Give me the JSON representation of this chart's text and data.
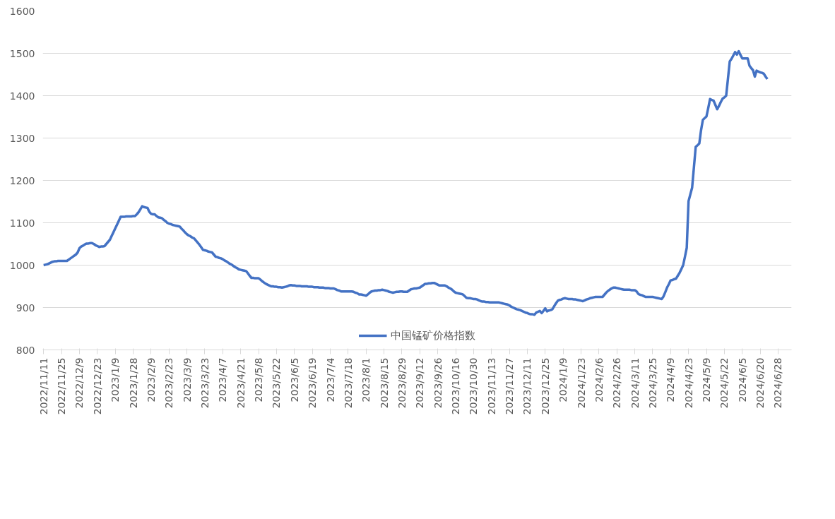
{
  "chart_data": {
    "type": "line",
    "categories": [
      "2022/11/11",
      null,
      null,
      null,
      null,
      null,
      null,
      null,
      null,
      null,
      "2022/11/25",
      null,
      null,
      null,
      null,
      null,
      null,
      null,
      null,
      null,
      "2022/12/9",
      null,
      null,
      null,
      null,
      null,
      null,
      null,
      null,
      null,
      "2022/12/23",
      null,
      null,
      null,
      null,
      null,
      null,
      null,
      null,
      null,
      "2023/1/9",
      null,
      null,
      null,
      null,
      null,
      null,
      null,
      null,
      null,
      "2023/1/28",
      null,
      null,
      null,
      null,
      null,
      null,
      null,
      null,
      null,
      "2023/2/9",
      null,
      null,
      null,
      null,
      null,
      null,
      null,
      null,
      null,
      "2023/2/23",
      null,
      null,
      null,
      null,
      null,
      null,
      null,
      null,
      null,
      "2023/3/9",
      null,
      null,
      null,
      null,
      null,
      null,
      null,
      null,
      null,
      "2023/3/23",
      null,
      null,
      null,
      null,
      null,
      null,
      null,
      null,
      null,
      "2023/4/7",
      null,
      null,
      null,
      null,
      null,
      null,
      null,
      null,
      null,
      "2023/4/21",
      null,
      null,
      null,
      null,
      null,
      null,
      null,
      null,
      null,
      "2023/5/8",
      null,
      null,
      null,
      null,
      null,
      null,
      null,
      null,
      null,
      "2023/5/22",
      null,
      null,
      null,
      null,
      null,
      null,
      null,
      null,
      null,
      "2023/6/5",
      null,
      null,
      null,
      null,
      null,
      null,
      null,
      null,
      null,
      "2023/6/19",
      null,
      null,
      null,
      null,
      null,
      null,
      null,
      null,
      null,
      "2023/7/4",
      null,
      null,
      null,
      null,
      null,
      null,
      null,
      null,
      null,
      "2023/7/18",
      null,
      null,
      null,
      null,
      null,
      null,
      null,
      null,
      null,
      "2023/8/1",
      null,
      null,
      null,
      null,
      null,
      null,
      null,
      null,
      null,
      "2023/8/15",
      null,
      null,
      null,
      null,
      null,
      null,
      null,
      null,
      null,
      "2023/8/29",
      null,
      null,
      null,
      null,
      null,
      null,
      null,
      null,
      null,
      "2023/9/12",
      null,
      null,
      null,
      null,
      null,
      null,
      null,
      null,
      null,
      "2023/9/26",
      null,
      null,
      null,
      null,
      null,
      null,
      null,
      null,
      null,
      "2023/10/16",
      null,
      null,
      null,
      null,
      null,
      null,
      null,
      null,
      null,
      "2023/10/30",
      null,
      null,
      null,
      null,
      null,
      null,
      null,
      null,
      null,
      "2023/11/13",
      null,
      null,
      null,
      null,
      null,
      null,
      null,
      null,
      null,
      "2023/11/27",
      null,
      null,
      null,
      null,
      null,
      null,
      null,
      null,
      null,
      "2023/12/11",
      null,
      null,
      null,
      null,
      null,
      null,
      null,
      null,
      null,
      "2023/12/25",
      null,
      null,
      null,
      null,
      null,
      null,
      null,
      null,
      null,
      "2024/1/9",
      null,
      null,
      null,
      null,
      null,
      null,
      null,
      null,
      null,
      "2024/1/23",
      null,
      null,
      null,
      null,
      null,
      null,
      null,
      null,
      null,
      "2024/2/6",
      null,
      null,
      null,
      null,
      null,
      null,
      null,
      null,
      null,
      "2024/2/26",
      null,
      null,
      null,
      null,
      null,
      null,
      null,
      null,
      null,
      "2024/3/11",
      null,
      null,
      null,
      null,
      null,
      null,
      null,
      null,
      null,
      "2024/3/25",
      null,
      null,
      null,
      null,
      null,
      null,
      null,
      null,
      null,
      "2024/4/9",
      null,
      null,
      null,
      null,
      null,
      null,
      null,
      null,
      null,
      "2024/4/23",
      null,
      null,
      null,
      null,
      null,
      null,
      null,
      null,
      null,
      "2024/5/9",
      null,
      null,
      null,
      null,
      null,
      null,
      null,
      null,
      null,
      "2024/5/22",
      null,
      null,
      null,
      null,
      null,
      null,
      null,
      null,
      null,
      "2024/6/5",
      null,
      null,
      null,
      null,
      null,
      null,
      null,
      null,
      null,
      "2024/6/20",
      null,
      null,
      null,
      null,
      null,
      null,
      null,
      null,
      null,
      "2024/6/28",
      null,
      null,
      null,
      null,
      null,
      null,
      null
    ],
    "series": [
      {
        "name": "中国锰矿价格指数",
        "color": "#4472c4",
        "values": [
          1000,
          1001,
          1002,
          1004,
          1006,
          1008,
          1009,
          1009,
          1010,
          1010,
          1010,
          1010,
          1010,
          1010,
          1013,
          1016,
          1019,
          1022,
          1025,
          1030,
          1040,
          1044,
          1046,
          1049,
          1051,
          1051,
          1052,
          1052,
          1050,
          1047,
          1045,
          1043,
          1044,
          1044,
          1045,
          1050,
          1055,
          1060,
          1069,
          1078,
          1087,
          1096,
          1105,
          1114,
          1114,
          1114,
          1115,
          1115,
          1115,
          1115,
          1116,
          1116,
          1120,
          1125,
          1132,
          1139,
          1137,
          1136,
          1135,
          1126,
          1121,
          1120,
          1120,
          1116,
          1113,
          1112,
          1111,
          1107,
          1104,
          1100,
          1098,
          1097,
          1095,
          1094,
          1093,
          1092,
          1091,
          1086,
          1082,
          1077,
          1073,
          1070,
          1068,
          1065,
          1063,
          1058,
          1053,
          1048,
          1042,
          1036,
          1035,
          1034,
          1032,
          1031,
          1030,
          1025,
          1020,
          1019,
          1017,
          1016,
          1014,
          1011,
          1009,
          1006,
          1003,
          1001,
          998,
          995,
          993,
          990,
          989,
          988,
          987,
          986,
          981,
          975,
          970,
          970,
          969,
          969,
          969,
          966,
          962,
          959,
          956,
          954,
          952,
          950,
          950,
          949,
          949,
          948,
          948,
          947,
          948,
          949,
          950,
          952,
          953,
          952,
          952,
          951,
          951,
          951,
          950,
          950,
          950,
          950,
          949,
          949,
          949,
          948,
          948,
          948,
          947,
          947,
          947,
          946,
          946,
          946,
          945,
          945,
          945,
          943,
          941,
          940,
          938,
          938,
          938,
          938,
          938,
          938,
          938,
          937,
          935,
          934,
          931,
          931,
          930,
          929,
          928,
          931,
          935,
          938,
          939,
          940,
          940,
          941,
          941,
          942,
          941,
          940,
          939,
          937,
          936,
          935,
          936,
          937,
          937,
          938,
          938,
          937,
          937,
          937,
          940,
          943,
          944,
          945,
          945,
          946,
          947,
          950,
          953,
          956,
          956,
          957,
          957,
          958,
          958,
          956,
          954,
          952,
          952,
          952,
          952,
          950,
          947,
          945,
          942,
          938,
          935,
          934,
          933,
          932,
          931,
          927,
          923,
          922,
          922,
          921,
          920,
          920,
          919,
          917,
          915,
          914,
          914,
          913,
          913,
          912,
          912,
          912,
          912,
          912,
          912,
          911,
          910,
          909,
          908,
          907,
          905,
          902,
          900,
          898,
          896,
          895,
          894,
          892,
          890,
          888,
          887,
          885,
          884,
          884,
          883,
          888,
          890,
          892,
          887,
          892,
          898,
          891,
          893,
          894,
          896,
          903,
          910,
          916,
          918,
          919,
          921,
          922,
          921,
          920,
          920,
          920,
          919,
          919,
          918,
          917,
          916,
          915,
          917,
          919,
          920,
          922,
          923,
          924,
          925,
          925,
          925,
          925,
          925,
          930,
          935,
          939,
          942,
          945,
          947,
          947,
          946,
          945,
          944,
          943,
          942,
          942,
          942,
          942,
          941,
          941,
          941,
          938,
          932,
          930,
          929,
          927,
          925,
          925,
          925,
          925,
          925,
          924,
          923,
          922,
          921,
          920,
          926,
          936,
          947,
          955,
          964,
          965,
          967,
          968,
          975,
          982,
          991,
          1000,
          1020,
          1041,
          1151,
          1167,
          1183,
          1231,
          1279,
          1283,
          1287,
          1319,
          1343,
          1347,
          1351,
          1371,
          1392,
          1390,
          1388,
          1378,
          1368,
          1376,
          1385,
          1393,
          1396,
          1400,
          1440,
          1481,
          1487,
          1495,
          1503,
          1497,
          1505,
          1496,
          1488,
          1488,
          1488,
          1488,
          1471,
          1465,
          1460,
          1445,
          1459,
          1457,
          1455,
          1454,
          1452,
          1445,
          1439,
          null,
          null,
          null,
          null,
          null,
          null,
          null,
          null,
          null,
          null,
          null,
          null,
          null
        ]
      }
    ],
    "ylim": [
      800,
      1600
    ],
    "yticks": [
      800,
      900,
      1000,
      1100,
      1200,
      1300,
      1400,
      1500,
      1600
    ],
    "grid": "y",
    "legend": "bottom"
  }
}
